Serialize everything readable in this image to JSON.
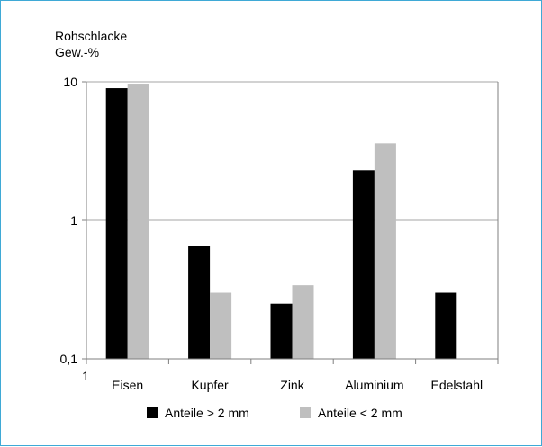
{
  "chart_data": {
    "type": "bar",
    "ylabel": [
      "Rohschlacke",
      "Gew.-%"
    ],
    "yscale": "log",
    "ylim": [
      0.1,
      10
    ],
    "yticks": [
      {
        "value": 10,
        "label": "10"
      },
      {
        "value": 1,
        "label": "1"
      },
      {
        "value": 0.1,
        "label": "0,1"
      }
    ],
    "x_origin_label": "1",
    "categories": [
      "Eisen",
      "Kupfer",
      "Zink",
      "Aluminium",
      "Edelstahl"
    ],
    "series": [
      {
        "name": "Anteile > 2 mm",
        "color": "#000000",
        "values": [
          9.0,
          0.65,
          0.25,
          2.3,
          0.3
        ]
      },
      {
        "name": "Anteile < 2 mm",
        "color": "#bfbfbf",
        "values": [
          9.7,
          0.3,
          0.34,
          3.6,
          null
        ]
      }
    ],
    "grid": "horizontal at major ticks",
    "legend_position": "bottom"
  },
  "colors": {
    "frame_border": "#3fa9d6",
    "gridline": "#a6a6a6",
    "axis": "#7f7f7f"
  }
}
